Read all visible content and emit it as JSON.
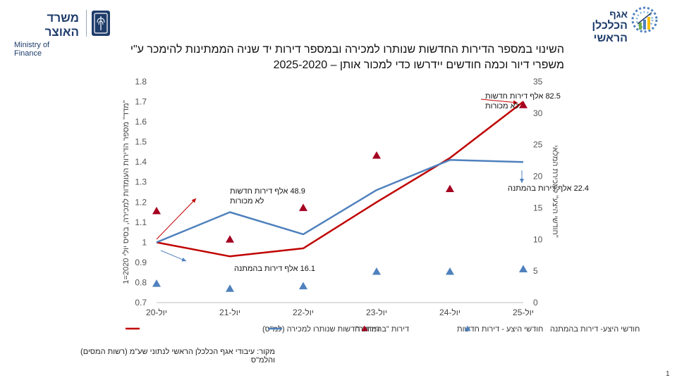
{
  "header": {
    "ministry_he": "משרד האוצר",
    "ministry_en": "Ministry of Finance",
    "division_line1": "אגף",
    "division_line2": "הכלכלן הראשי"
  },
  "title": {
    "line1": "השינוי במספר הדירות החדשות שנותרו למכירה ובמספר דירות יד שניה הממתינות להימכר ע\"י",
    "line2": "משפרי דיור וכמה חודשים יידרשו כדי למכור אותן – 2025-2020"
  },
  "source_note": "מקור: עיבודי אגף הכלכלן הראשי לנתוני שע\"מ (רשות המסים) והלמ\"ס",
  "page_number": "1",
  "chart_data": {
    "type": "line",
    "categories": [
      "יול-20",
      "יול-21",
      "יול-22",
      "יול-23",
      "יול-24",
      "יול-25"
    ],
    "left_axis": {
      "label": "\"מדד\" מספר הדירות העומדות למכירה, בסיס יולי 2020=1",
      "ylim": [
        0.7,
        1.8
      ],
      "ticks": [
        "0.7",
        "0.8",
        "0.9",
        "1",
        "1.1",
        "1.2",
        "1.3",
        "1.4",
        "1.5",
        "1.6",
        "1.7",
        "1.8"
      ]
    },
    "right_axis": {
      "label": "\"חודשי היצע\" למכירת המלאי",
      "ylim": [
        0,
        35
      ],
      "ticks": [
        "0",
        "5",
        "10",
        "15",
        "20",
        "25",
        "30",
        "35"
      ]
    },
    "series": [
      {
        "name": "דירות חדשות שנותרו למכירה (למ\"ס)",
        "kind": "line",
        "axis": "left",
        "color": "#c00000",
        "values": [
          1.0,
          0.93,
          0.97,
          1.2,
          1.42,
          1.7
        ]
      },
      {
        "name": "דירות \"בהמתנה\"",
        "kind": "line",
        "axis": "left",
        "color": "#4f81bd",
        "values": [
          1.0,
          1.15,
          1.04,
          1.26,
          1.41,
          1.4
        ]
      },
      {
        "name": "חודשי היצע - דירות חדשות",
        "kind": "triangle",
        "axis": "right",
        "color": "#a50021",
        "values": [
          14.5,
          10,
          15,
          23.3,
          18,
          31.3
        ]
      },
      {
        "name": "חודשי היצע- דירות בהמתנה",
        "kind": "triangle",
        "axis": "right",
        "color": "#4f81bd",
        "values": [
          3,
          2.2,
          2.6,
          4.9,
          4.9,
          5.3
        ]
      }
    ],
    "annotations": [
      {
        "text_line1": "48.9 אלף דירות חדשות",
        "text_line2": "לא מכורות",
        "color": "#c00000"
      },
      {
        "text_line1": "16.1 אלף דירות בהמתנה",
        "text_line2": "",
        "color": "#4f81bd"
      },
      {
        "text_line1": "82.5 אלף דירות חדשות",
        "text_line2": "לא מכורות",
        "color": "#c00000"
      },
      {
        "text_line1": "22.4 אלף דירות בהמתנה",
        "text_line2": "",
        "color": "#4f81bd"
      }
    ],
    "legend_position": "bottom",
    "grid": false
  }
}
